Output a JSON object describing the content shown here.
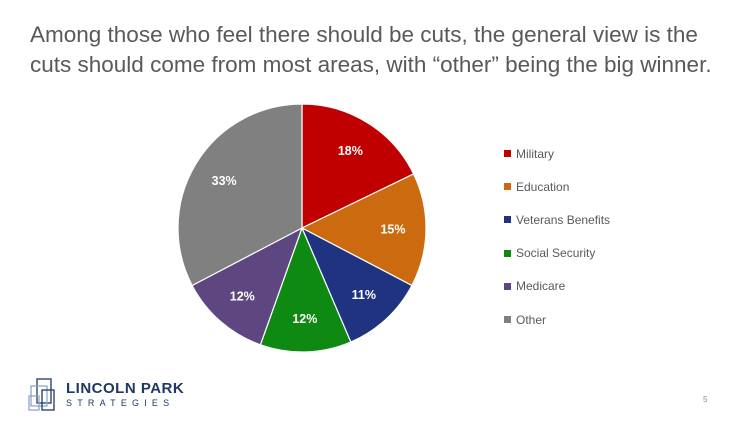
{
  "title": "Among those who feel there should be cuts, the general view is the\ncuts should come from most areas, with “other” being the big winner.",
  "chart_data": {
    "type": "pie",
    "slices": [
      {
        "name": "Military",
        "value": 18,
        "label": "18%",
        "color": "#C00000"
      },
      {
        "name": "Education",
        "value": 15,
        "label": "15%",
        "color": "#CC6A10"
      },
      {
        "name": "Veterans Benefits",
        "value": 11,
        "label": "11%",
        "color": "#1F3380"
      },
      {
        "name": "Social Security",
        "value": 12,
        "label": "12%",
        "color": "#0E8A12"
      },
      {
        "name": "Medicare",
        "value": 12,
        "label": "12%",
        "color": "#5E4780"
      },
      {
        "name": "Other",
        "value": 33,
        "label": "33%",
        "color": "#808080"
      }
    ],
    "start": "12 o'clock",
    "direction": "clockwise",
    "legend_position": "right"
  },
  "logo": {
    "line1": "LINCOLN PARK",
    "line2": "STRATEGIES"
  },
  "page_number": "5"
}
